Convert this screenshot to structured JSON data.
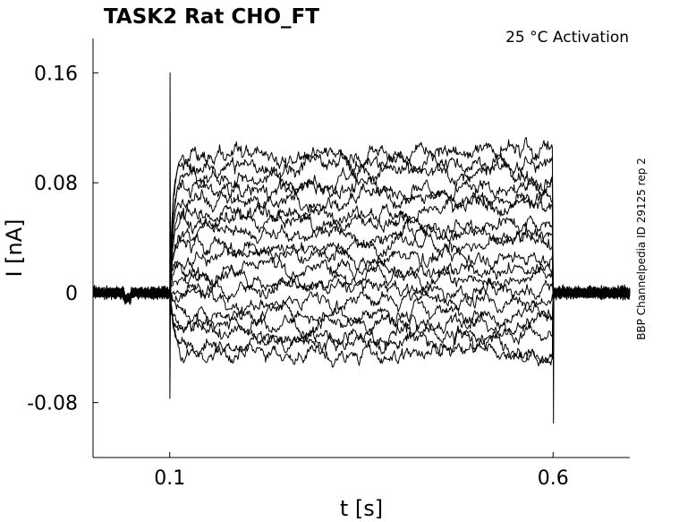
{
  "chart_data": {
    "type": "line",
    "title": "TASK2  Rat  CHO_FT",
    "subtitle": "25 °C  Activation",
    "side_note": "BBP Channelpedia ID 29125 rep 2",
    "xlabel": "t [s]",
    "ylabel": "I [nA]",
    "xlim": [
      0.0,
      0.7
    ],
    "ylim": [
      -0.12,
      0.185
    ],
    "x_ticks": [
      {
        "value": 0.1,
        "label": "0.1"
      },
      {
        "value": 0.6,
        "label": "0.6"
      }
    ],
    "y_ticks": [
      {
        "value": 0.16,
        "label": "0.16"
      },
      {
        "value": 0.08,
        "label": "0.08"
      },
      {
        "value": 0,
        "label": "0"
      },
      {
        "value": -0.08,
        "label": "-0.08"
      }
    ],
    "grid": false,
    "line_color": "#000000",
    "stimulus": {
      "on": 0.1,
      "off": 0.6
    },
    "transients": {
      "onset_peak": 0.16,
      "onset_trough": -0.077,
      "offset_trough": -0.095
    },
    "series_steady_state_nA": [
      -0.045,
      -0.036,
      -0.03,
      -0.022,
      -0.014,
      -0.005,
      0.003,
      0.011,
      0.018,
      0.026,
      0.034,
      0.042,
      0.05,
      0.058,
      0.066,
      0.074,
      0.083,
      0.09,
      0.098
    ]
  }
}
